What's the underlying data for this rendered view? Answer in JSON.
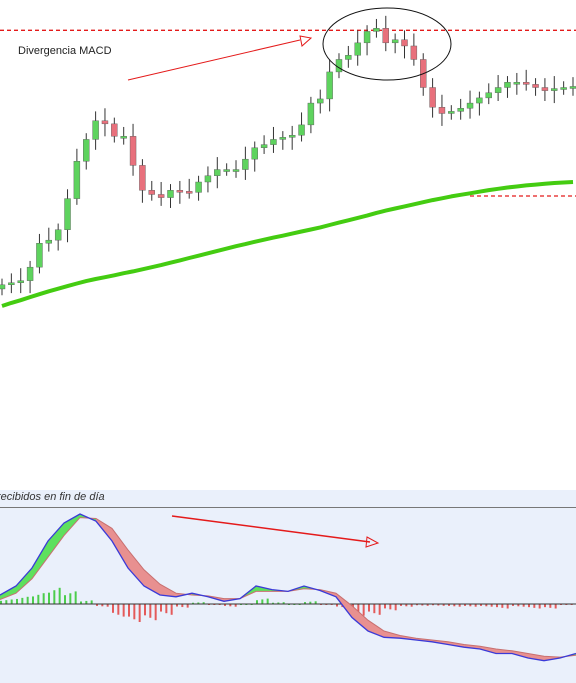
{
  "annotations": {
    "title": "Divergencia MACD",
    "macd_caption": "recibidos en fin de día"
  },
  "colors": {
    "up_candle": "#5ed35e",
    "down_candle": "#e8707c",
    "wick": "#333333",
    "ma_line": "#44cc11",
    "resistance_line": "#e41a1a",
    "arrow": "#e41a1a",
    "macd_line": "#3a3ad8",
    "signal_line": "#c87070",
    "macd_fill_up": "#5ee05e",
    "macd_fill_down": "#e89090",
    "hist_up": "#4ccd4c",
    "hist_down": "#e45a5a",
    "macd_bg": "#eaf0fb"
  },
  "chart_data": {
    "type": "candlestick",
    "price": [
      5,
      7,
      9,
      22,
      45,
      48,
      58,
      88,
      124,
      145,
      163,
      160,
      148,
      148,
      120,
      96,
      92,
      89,
      96,
      95,
      94,
      104,
      110,
      116,
      116,
      116,
      126,
      137,
      140,
      145,
      147,
      149,
      159,
      180,
      184,
      210,
      222,
      226,
      238,
      249,
      252,
      238,
      241,
      235,
      222,
      195,
      176,
      170,
      172,
      175,
      180,
      185,
      190,
      195,
      200,
      200,
      198,
      195,
      192,
      194,
      195,
      196
    ],
    "ma": [
      210,
      222,
      232,
      244,
      255,
      266,
      276,
      286,
      296,
      305,
      313,
      320,
      327,
      335,
      342,
      350,
      358,
      366,
      375,
      384,
      393,
      402,
      411,
      420,
      429,
      438,
      446,
      455,
      463,
      471,
      478,
      486,
      494,
      502,
      510,
      519,
      528,
      537,
      546,
      555,
      565,
      574,
      582,
      590,
      598,
      606,
      614,
      621,
      628,
      634,
      640,
      646,
      652,
      657,
      662,
      666,
      670,
      673,
      676,
      679,
      681,
      683
    ],
    "macd_line": [
      10,
      20,
      40,
      70,
      90,
      100,
      92,
      70,
      40,
      20,
      10,
      8,
      12,
      8,
      3,
      6,
      20,
      16,
      14,
      20,
      15,
      8,
      -15,
      -30,
      -37,
      -38,
      -40,
      -42,
      -45,
      -48,
      -50,
      -55,
      -55,
      -60,
      -63,
      -60,
      -55
    ],
    "signal_line": [
      5,
      12,
      28,
      52,
      76,
      96,
      95,
      84,
      60,
      38,
      22,
      12,
      10,
      9,
      6,
      6,
      14,
      14,
      14,
      17,
      16,
      12,
      -2,
      -18,
      -30,
      -35,
      -38,
      -40,
      -42,
      -45,
      -47,
      -50,
      -52,
      -55,
      -58,
      -59,
      -57
    ],
    "histogram": [
      5,
      8,
      12,
      18,
      14,
      4,
      -3,
      -14,
      -20,
      -18,
      -12,
      -4,
      2,
      -1,
      -3,
      0,
      6,
      2,
      0,
      3,
      -1,
      -4,
      -13,
      -12,
      -7,
      -3,
      -2,
      -2,
      -3,
      -3,
      -3,
      -5,
      -3,
      -5,
      -5,
      -1,
      2
    ],
    "resistance_level": 252,
    "support_level": 176
  }
}
